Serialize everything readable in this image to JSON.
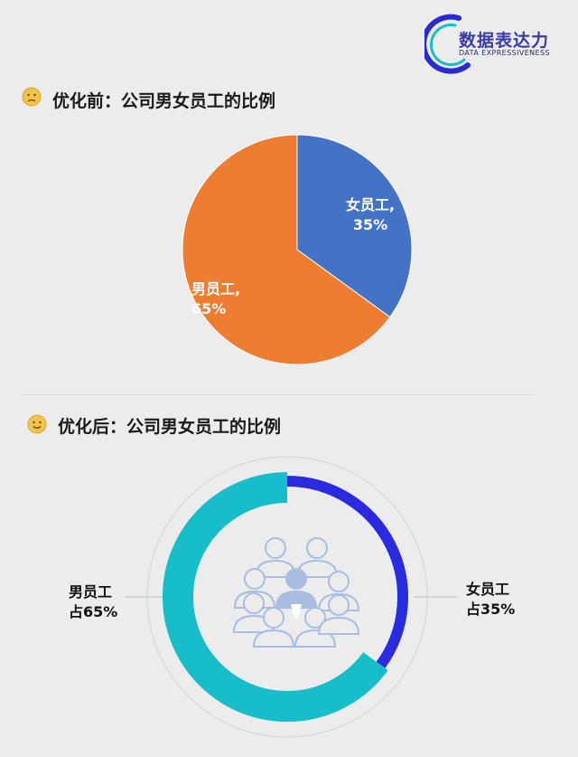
{
  "header": {
    "logo_cn": "数据表达力",
    "logo_en": "DATA EXPRESSIVENESS"
  },
  "section_before": {
    "title": "优化前：公司男女员工的比例",
    "emoji": "sad-face-icon"
  },
  "section_after": {
    "title": "优化后：公司男女员工的比例",
    "emoji": "smile-face-icon",
    "center_icon": "people-group-icon"
  },
  "colors": {
    "female_before": "#4472c4",
    "male_before": "#ed7d31",
    "female_after": "#2a2ae0",
    "male_after": "#17bec9"
  },
  "chart_data": [
    {
      "type": "pie",
      "title": "",
      "categories": [
        "女员工",
        "男员工"
      ],
      "values": [
        35,
        65
      ],
      "labels": [
        {
          "line1": "女员工,",
          "line2": "35%"
        },
        {
          "line1": "男员工,",
          "line2": "65%"
        }
      ]
    },
    {
      "type": "pie",
      "title": "",
      "variant": "donut",
      "categories": [
        "女员工",
        "男员工"
      ],
      "values": [
        35,
        65
      ],
      "labels": [
        {
          "line1": "女员工",
          "line2": "占35%"
        },
        {
          "line1": "男员工",
          "line2": "占65%"
        }
      ]
    }
  ]
}
